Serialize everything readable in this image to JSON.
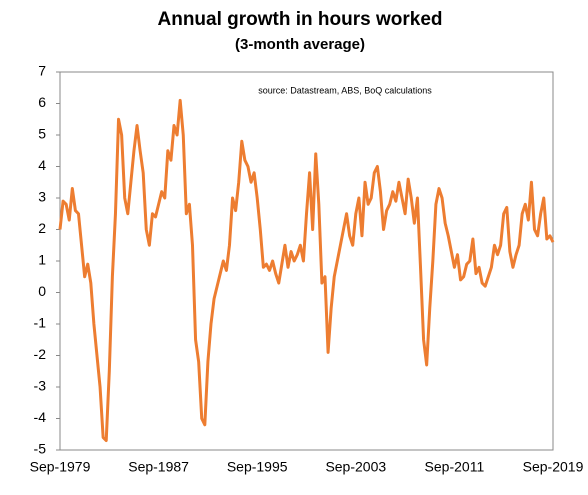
{
  "chart_data": {
    "type": "line",
    "title": "Annual growth in hours worked",
    "subtitle": "(3-month  average)",
    "annotation": "source:  Datastream, ABS, BoQ calculations",
    "categories": [
      "Sep-1979",
      null,
      null,
      null,
      null,
      null,
      null,
      null,
      null,
      null,
      null,
      null,
      null,
      null,
      null,
      null,
      null,
      null,
      null,
      null,
      null,
      null,
      null,
      null,
      null,
      null,
      null,
      null,
      null,
      null,
      null,
      null,
      "Sep-1987",
      null,
      null,
      null,
      null,
      null,
      null,
      null,
      null,
      null,
      null,
      null,
      null,
      null,
      null,
      null,
      null,
      null,
      null,
      null,
      null,
      null,
      null,
      null,
      null,
      null,
      null,
      null,
      null,
      null,
      null,
      null,
      "Sep-1995",
      null,
      null,
      null,
      null,
      null,
      null,
      null,
      null,
      null,
      null,
      null,
      null,
      null,
      null,
      null,
      null,
      null,
      null,
      null,
      null,
      null,
      null,
      null,
      null,
      null,
      null,
      null,
      null,
      null,
      null,
      null,
      "Sep-2003",
      null,
      null,
      null,
      null,
      null,
      null,
      null,
      null,
      null,
      null,
      null,
      null,
      null,
      null,
      null,
      null,
      null,
      null,
      null,
      null,
      null,
      null,
      null,
      null,
      null,
      null,
      null,
      null,
      null,
      null,
      null,
      "Sep-2011",
      null,
      null,
      null,
      null,
      null,
      null,
      null,
      null,
      null,
      null,
      null,
      null,
      null,
      null,
      null,
      null,
      null,
      null,
      null,
      null,
      null,
      null,
      null,
      null,
      null,
      null,
      null,
      null,
      null,
      null,
      null,
      "Sep-2019"
    ],
    "series": [
      {
        "color": "#ed7d31",
        "values": [
          2.0,
          2.9,
          2.8,
          2.3,
          3.3,
          2.6,
          2.5,
          1.5,
          0.5,
          0.9,
          0.3,
          -1.0,
          -2.0,
          -3.0,
          -4.6,
          -4.7,
          -2.5,
          0.5,
          2.5,
          5.5,
          5.0,
          3.0,
          2.5,
          3.5,
          4.5,
          5.3,
          4.5,
          3.8,
          2.0,
          1.5,
          2.5,
          2.4,
          2.8,
          3.2,
          3.0,
          4.5,
          4.2,
          5.3,
          5.0,
          6.1,
          5.0,
          2.5,
          2.8,
          1.5,
          -1.5,
          -2.2,
          -4.0,
          -4.2,
          -2.2,
          -1.0,
          -0.2,
          0.2,
          0.6,
          1.0,
          0.7,
          1.5,
          3.0,
          2.6,
          3.5,
          4.8,
          4.2,
          4.0,
          3.5,
          3.8,
          3.0,
          2.0,
          0.8,
          0.9,
          0.7,
          1.0,
          0.6,
          0.3,
          0.9,
          1.5,
          0.8,
          1.3,
          1.0,
          1.2,
          1.5,
          1.0,
          2.5,
          3.8,
          2.0,
          4.4,
          2.8,
          0.3,
          0.5,
          -1.9,
          -0.5,
          0.5,
          1.0,
          1.5,
          2.0,
          2.5,
          1.8,
          1.5,
          2.5,
          3.0,
          1.8,
          3.5,
          2.8,
          3.0,
          3.8,
          4.0,
          3.2,
          2.0,
          2.6,
          2.8,
          3.2,
          2.9,
          3.5,
          3.0,
          2.5,
          3.6,
          3.0,
          2.2,
          3.0,
          0.8,
          -1.5,
          -2.3,
          -0.5,
          1.0,
          2.8,
          3.3,
          3.0,
          2.2,
          1.8,
          1.3,
          0.8,
          1.2,
          0.4,
          0.5,
          0.9,
          1.0,
          1.7,
          0.6,
          0.8,
          0.3,
          0.2,
          0.5,
          0.8,
          1.5,
          1.2,
          1.5,
          2.5,
          2.7,
          1.3,
          0.8,
          1.2,
          1.5,
          2.5,
          2.8,
          2.3,
          3.5,
          2.0,
          1.8,
          2.5,
          3.0,
          1.7,
          1.8,
          1.6
        ]
      }
    ],
    "ylim": [
      -5,
      7
    ],
    "yticks": [
      -5,
      -4,
      -3,
      -2,
      -1,
      0,
      1,
      2,
      3,
      4,
      5,
      6,
      7
    ],
    "grid": false
  }
}
